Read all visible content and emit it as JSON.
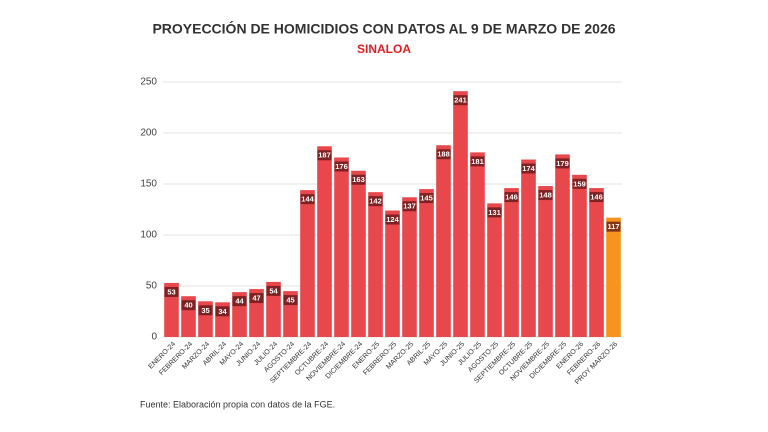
{
  "chart_data": {
    "type": "bar",
    "title": "PROYECCIÓN DE HOMICIDIOS CON DATOS AL 9 DE MARZO DE 2026",
    "subtitle": "SINALOA",
    "footnote": "Fuente: Elaboración propia con datos de la FGE.",
    "categories": [
      "ENERO-24",
      "FEBRERO-24",
      "MARZO-24",
      "ABRIL-24",
      "MAYO-24",
      "JUNIO-24",
      "JULIO-24",
      "AGOSTO-24",
      "SEPTIEMBRE-24",
      "OCTUBRE-24",
      "NOVIEMBRE-24",
      "DICIEMBRE-24",
      "ENERO-25",
      "FEBRERO-25",
      "MARZO-25",
      "ABRIL-25",
      "MAYO-25",
      "JUNIO-25",
      "JULIO-25",
      "AGOSTO-25",
      "SEPTIEMBRE-25",
      "OCTUBRE-25",
      "NOVIEMBRE-25",
      "DICIEMBRE-25",
      "ENERO-26",
      "FEBRERO-26",
      "PROY MARZO-26"
    ],
    "values": [
      53,
      40,
      35,
      34,
      44,
      47,
      54,
      45,
      144,
      187,
      176,
      163,
      142,
      124,
      137,
      145,
      188,
      241,
      181,
      131,
      146,
      174,
      148,
      179,
      159,
      146,
      117
    ],
    "colors": [
      "#e8474c",
      "#e8474c",
      "#e8474c",
      "#e8474c",
      "#e8474c",
      "#e8474c",
      "#e8474c",
      "#e8474c",
      "#e8474c",
      "#e8474c",
      "#e8474c",
      "#e8474c",
      "#e8474c",
      "#e8474c",
      "#e8474c",
      "#e8474c",
      "#e8474c",
      "#e8474c",
      "#e8474c",
      "#e8474c",
      "#e8474c",
      "#e8474c",
      "#e8474c",
      "#e8474c",
      "#e8474c",
      "#e8474c",
      "#f7941d"
    ],
    "ylim": [
      0,
      250
    ],
    "yticks": [
      0,
      50,
      100,
      150,
      200,
      250
    ],
    "grid": true
  }
}
